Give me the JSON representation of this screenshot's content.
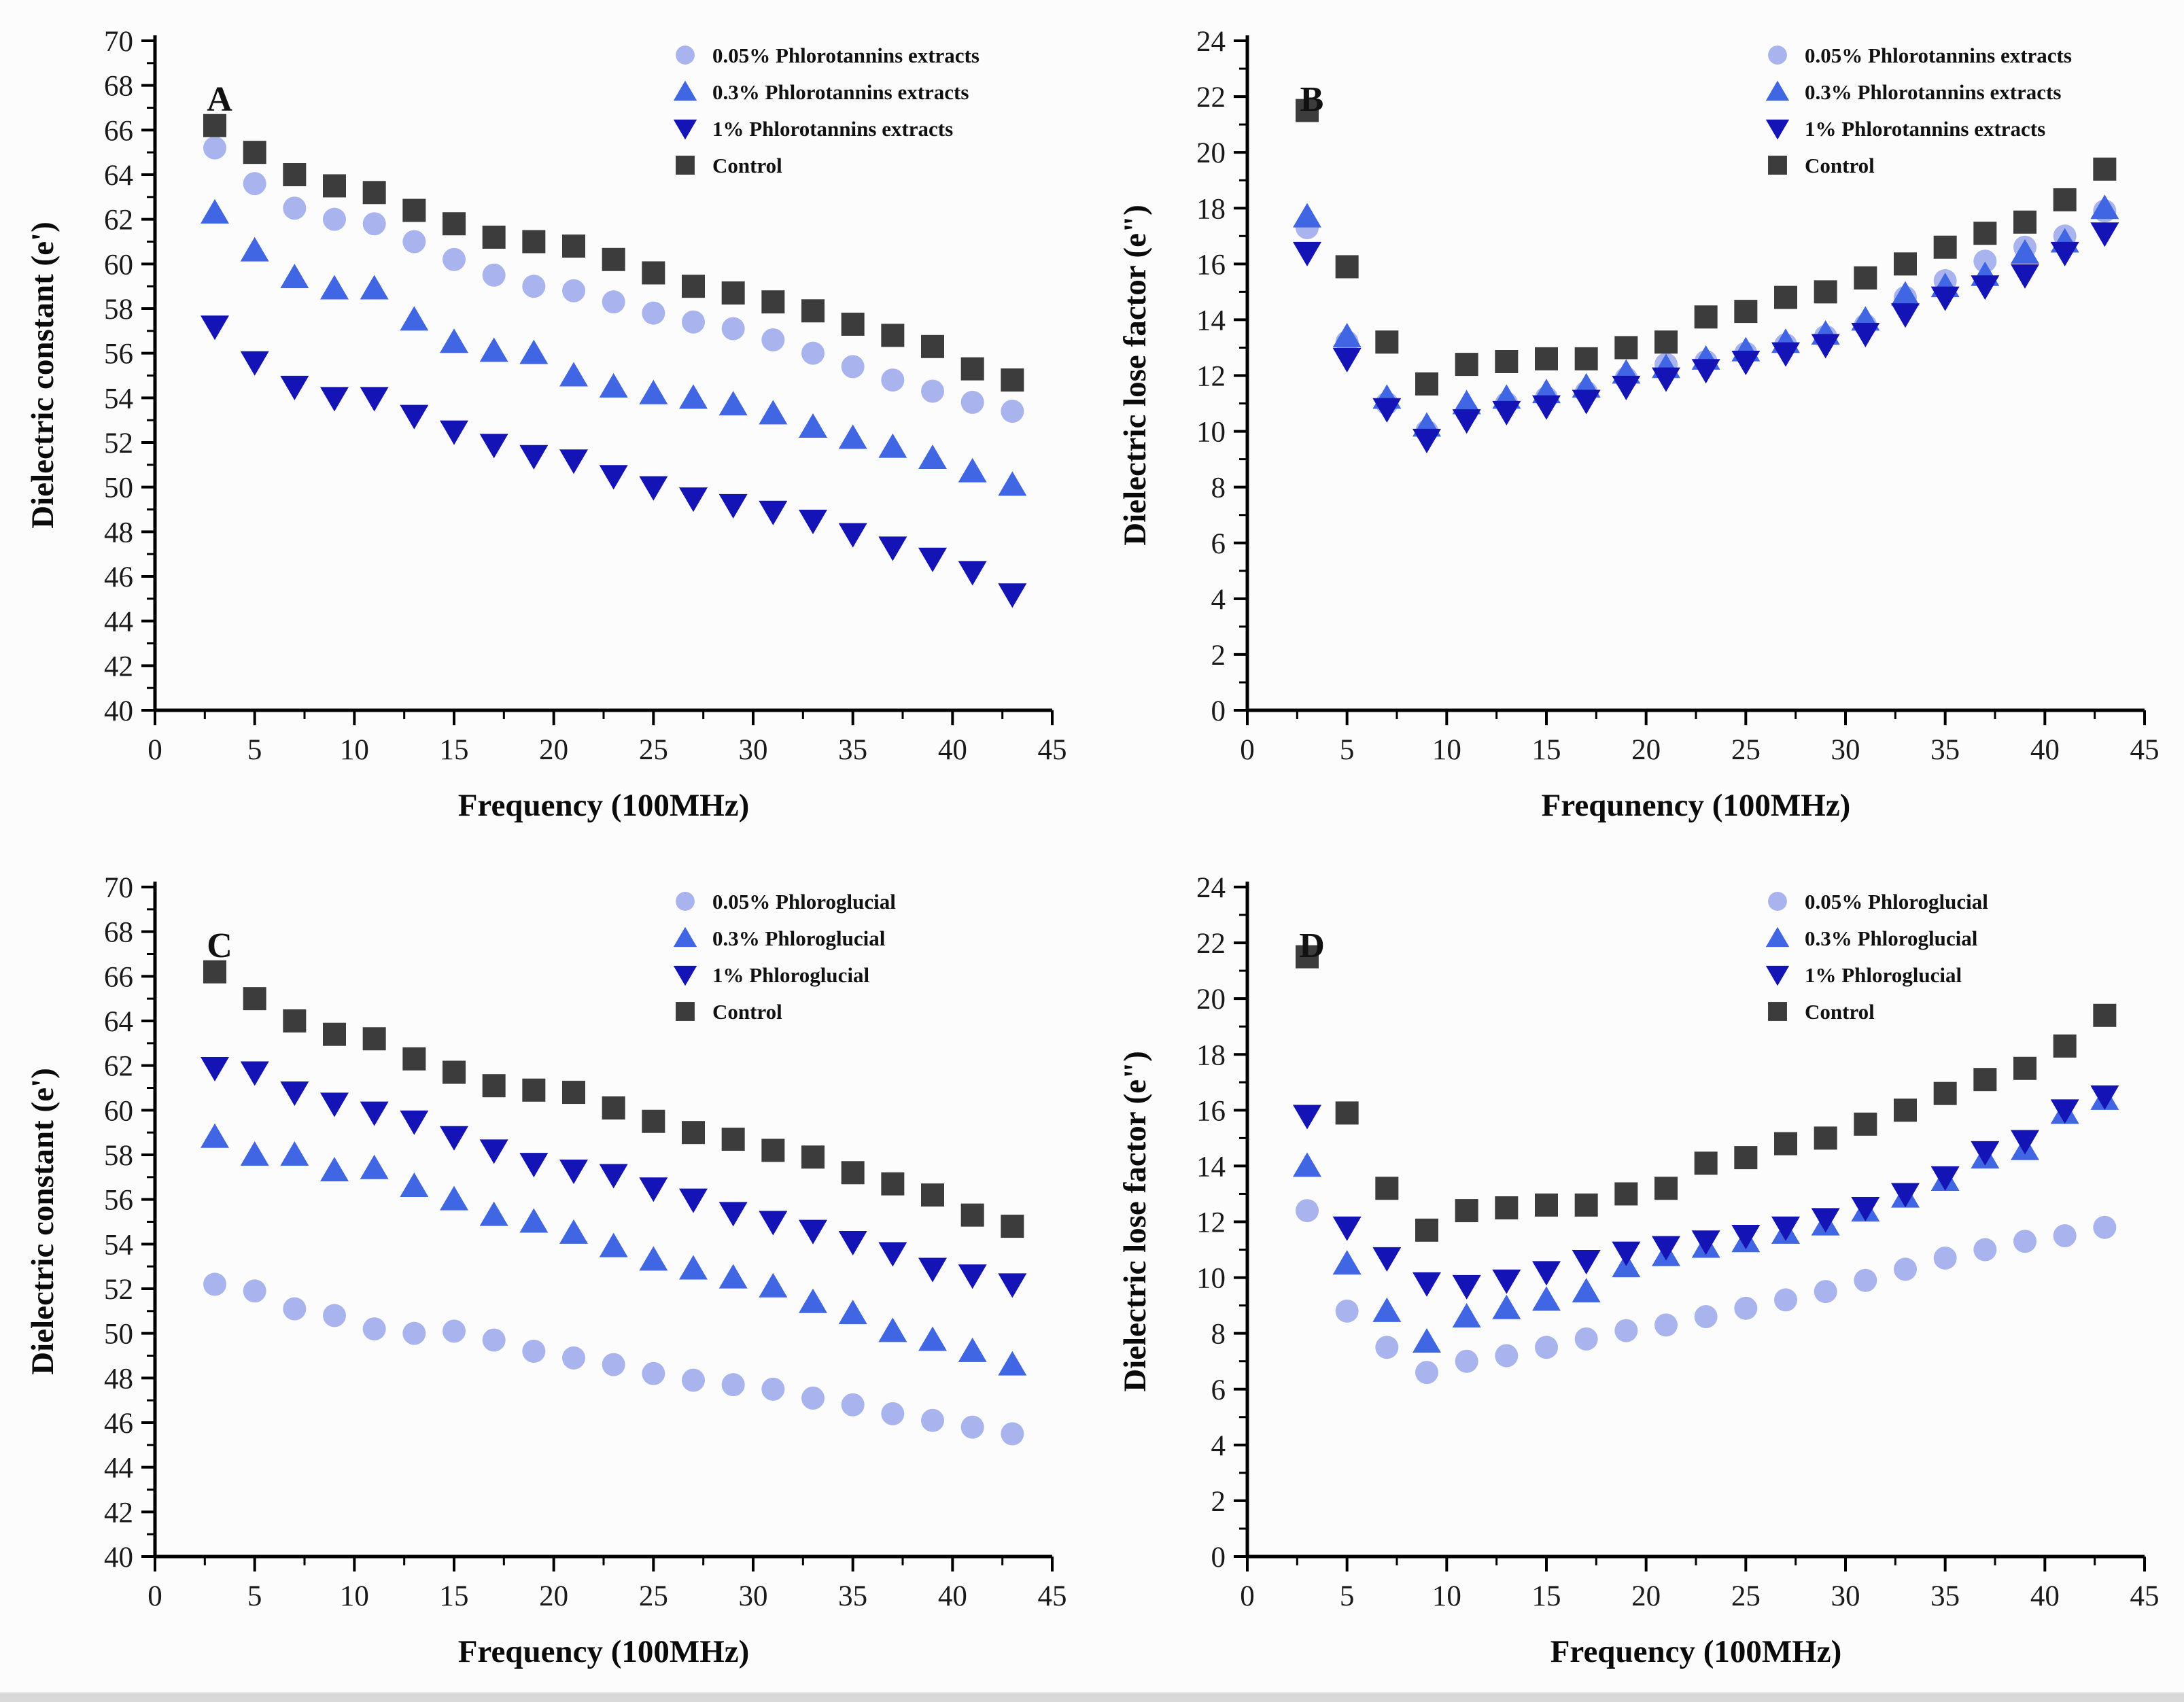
{
  "figure": {
    "background": "#fcfcfd",
    "axis_color": "#000000",
    "marker_colors": {
      "pct005": "#a9b4ee",
      "pct03": "#4166e4",
      "pct1": "#1413b6",
      "control": "#3c3c3c"
    }
  },
  "chart_data": [
    {
      "panel": "A",
      "type": "scatter",
      "xlabel": "Frequency (100MHz)",
      "ylabel": "Dielectric constant (e')",
      "xlim": [
        0,
        45
      ],
      "ylim": [
        40,
        70
      ],
      "x_tick_step": 5,
      "y_tick_step": 2,
      "grid": false,
      "legend_position": "top-right",
      "x": [
        3,
        5,
        7,
        9,
        11,
        13,
        15,
        17,
        19,
        21,
        23,
        25,
        27,
        29,
        31,
        33,
        35,
        37,
        39,
        41,
        43
      ],
      "series": [
        {
          "name": "0.05% Phlorotannins extracts",
          "marker": "circle",
          "color": "#a9b4ee",
          "values": [
            65.2,
            63.6,
            62.5,
            62.0,
            61.8,
            61.0,
            60.2,
            59.5,
            59.0,
            58.8,
            58.3,
            57.8,
            57.4,
            57.1,
            56.6,
            56.0,
            55.4,
            54.8,
            54.3,
            53.8,
            53.4
          ]
        },
        {
          "name": "0.3% Phlorotannins extracts",
          "marker": "triangle-up",
          "color": "#4166e4",
          "values": [
            62.3,
            60.6,
            59.4,
            58.9,
            58.9,
            57.5,
            56.5,
            56.1,
            56.0,
            55.0,
            54.5,
            54.2,
            54.0,
            53.7,
            53.3,
            52.7,
            52.2,
            51.8,
            51.3,
            50.7,
            50.1
          ]
        },
        {
          "name": "1% Phlorotannins extracts",
          "marker": "triangle-down",
          "color": "#1413b6",
          "values": [
            57.2,
            55.6,
            54.5,
            54.0,
            54.0,
            53.2,
            52.5,
            51.9,
            51.4,
            51.2,
            50.5,
            50.0,
            49.5,
            49.2,
            48.9,
            48.5,
            47.9,
            47.3,
            46.8,
            46.2,
            45.2
          ]
        },
        {
          "name": "Control",
          "marker": "square",
          "color": "#3c3c3c",
          "values": [
            66.2,
            65.0,
            64.0,
            63.5,
            63.2,
            62.4,
            61.8,
            61.2,
            61.0,
            60.8,
            60.2,
            59.6,
            59.0,
            58.7,
            58.3,
            57.9,
            57.3,
            56.8,
            56.3,
            55.3,
            54.8
          ]
        }
      ]
    },
    {
      "panel": "B",
      "type": "scatter",
      "xlabel": "Frequnency (100MHz)",
      "ylabel": "Dielectric lose factor (e\")",
      "xlim": [
        0,
        45
      ],
      "ylim": [
        0,
        24
      ],
      "x_tick_step": 5,
      "y_tick_step": 2,
      "grid": false,
      "legend_position": "top-right",
      "x": [
        3,
        5,
        7,
        9,
        11,
        13,
        15,
        17,
        19,
        21,
        23,
        25,
        27,
        29,
        31,
        33,
        35,
        37,
        39,
        41,
        43
      ],
      "series": [
        {
          "name": "0.05% Phlorotannins extracts",
          "marker": "circle",
          "color": "#a9b4ee",
          "values": [
            17.3,
            13.2,
            11.0,
            10.0,
            10.7,
            11.0,
            11.2,
            11.4,
            11.9,
            12.4,
            12.5,
            12.8,
            13.1,
            13.4,
            13.8,
            14.8,
            15.4,
            16.1,
            16.6,
            17.0,
            17.9
          ]
        },
        {
          "name": "0.3% Phlorotannins extracts",
          "marker": "triangle-up",
          "color": "#4166e4",
          "values": [
            17.7,
            13.4,
            11.2,
            10.2,
            11.0,
            11.2,
            11.4,
            11.6,
            12.1,
            12.3,
            12.6,
            12.9,
            13.2,
            13.5,
            14.0,
            14.9,
            15.2,
            15.6,
            16.4,
            16.8,
            18.0
          ]
        },
        {
          "name": "1% Phlorotannins extracts",
          "marker": "triangle-down",
          "color": "#1413b6",
          "values": [
            16.4,
            12.6,
            10.8,
            9.7,
            10.4,
            10.7,
            10.9,
            11.1,
            11.6,
            11.9,
            12.2,
            12.5,
            12.8,
            13.1,
            13.5,
            14.2,
            14.8,
            15.2,
            15.6,
            16.4,
            17.1
          ]
        },
        {
          "name": "Control",
          "marker": "square",
          "color": "#3c3c3c",
          "values": [
            21.5,
            15.9,
            13.2,
            11.7,
            12.4,
            12.5,
            12.6,
            12.6,
            13.0,
            13.2,
            14.1,
            14.3,
            14.8,
            15.0,
            15.5,
            16.0,
            16.6,
            17.1,
            17.5,
            18.3,
            19.4
          ]
        }
      ]
    },
    {
      "panel": "C",
      "type": "scatter",
      "xlabel": "Frequency (100MHz)",
      "ylabel": "Dielectric constant (e')",
      "xlim": [
        0,
        45
      ],
      "ylim": [
        40,
        70
      ],
      "x_tick_step": 5,
      "y_tick_step": 2,
      "grid": false,
      "legend_position": "top-right",
      "x": [
        3,
        5,
        7,
        9,
        11,
        13,
        15,
        17,
        19,
        21,
        23,
        25,
        27,
        29,
        31,
        33,
        35,
        37,
        39,
        41,
        43
      ],
      "series": [
        {
          "name": "0.05% Phloroglucial",
          "marker": "circle",
          "color": "#a9b4ee",
          "values": [
            52.2,
            51.9,
            51.1,
            50.8,
            50.2,
            50.0,
            50.1,
            49.7,
            49.2,
            48.9,
            48.6,
            48.2,
            47.9,
            47.7,
            47.5,
            47.1,
            46.8,
            46.4,
            46.1,
            45.8,
            45.5
          ]
        },
        {
          "name": "0.3% Phloroglucial",
          "marker": "triangle-up",
          "color": "#4166e4",
          "values": [
            58.8,
            58.0,
            58.0,
            57.3,
            57.4,
            56.6,
            56.0,
            55.3,
            55.0,
            54.5,
            53.9,
            53.3,
            52.9,
            52.5,
            52.1,
            51.4,
            50.9,
            50.1,
            49.7,
            49.2,
            48.6
          ]
        },
        {
          "name": "1% Phloroglucial",
          "marker": "triangle-down",
          "color": "#1413b6",
          "values": [
            61.9,
            61.7,
            60.8,
            60.3,
            59.9,
            59.5,
            58.8,
            58.2,
            57.6,
            57.3,
            57.1,
            56.5,
            56.0,
            55.4,
            55.0,
            54.6,
            54.1,
            53.6,
            52.9,
            52.6,
            52.2
          ]
        },
        {
          "name": "Control",
          "marker": "square",
          "color": "#3c3c3c",
          "values": [
            66.2,
            65.0,
            64.0,
            63.4,
            63.2,
            62.3,
            61.7,
            61.1,
            60.9,
            60.8,
            60.1,
            59.5,
            59.0,
            58.7,
            58.2,
            57.9,
            57.2,
            56.7,
            56.2,
            55.3,
            54.8
          ]
        }
      ]
    },
    {
      "panel": "D",
      "type": "scatter",
      "xlabel": "Frequency (100MHz)",
      "ylabel": "Dielectric lose factor (e\")",
      "xlim": [
        0,
        45
      ],
      "ylim": [
        0,
        24
      ],
      "x_tick_step": 5,
      "y_tick_step": 2,
      "grid": false,
      "legend_position": "top-right",
      "x": [
        3,
        5,
        7,
        9,
        11,
        13,
        15,
        17,
        19,
        21,
        23,
        25,
        27,
        29,
        31,
        33,
        35,
        37,
        39,
        41,
        43
      ],
      "series": [
        {
          "name": "0.05% Phloroglucial",
          "marker": "circle",
          "color": "#a9b4ee",
          "values": [
            12.4,
            8.8,
            7.5,
            6.6,
            7.0,
            7.2,
            7.5,
            7.8,
            8.1,
            8.3,
            8.6,
            8.9,
            9.2,
            9.5,
            9.9,
            10.3,
            10.7,
            11.0,
            11.3,
            11.5,
            11.8
          ]
        },
        {
          "name": "0.3% Phloroglucial",
          "marker": "triangle-up",
          "color": "#4166e4",
          "values": [
            14.0,
            10.5,
            8.8,
            7.7,
            8.6,
            8.9,
            9.2,
            9.5,
            10.4,
            10.8,
            11.1,
            11.3,
            11.6,
            11.9,
            12.4,
            12.9,
            13.5,
            14.3,
            14.6,
            15.9,
            16.4
          ]
        },
        {
          "name": "1% Phloroglucial",
          "marker": "triangle-down",
          "color": "#1413b6",
          "values": [
            15.8,
            11.8,
            10.7,
            9.8,
            9.7,
            9.9,
            10.2,
            10.6,
            10.9,
            11.1,
            11.3,
            11.5,
            11.8,
            12.1,
            12.5,
            13.0,
            13.6,
            14.5,
            14.9,
            16.0,
            16.5
          ]
        },
        {
          "name": "Control",
          "marker": "square",
          "color": "#3c3c3c",
          "values": [
            21.5,
            15.9,
            13.2,
            11.7,
            12.4,
            12.5,
            12.6,
            12.6,
            13.0,
            13.2,
            14.1,
            14.3,
            14.8,
            15.0,
            15.5,
            16.0,
            16.6,
            17.1,
            17.5,
            18.3,
            19.4
          ]
        }
      ]
    }
  ]
}
